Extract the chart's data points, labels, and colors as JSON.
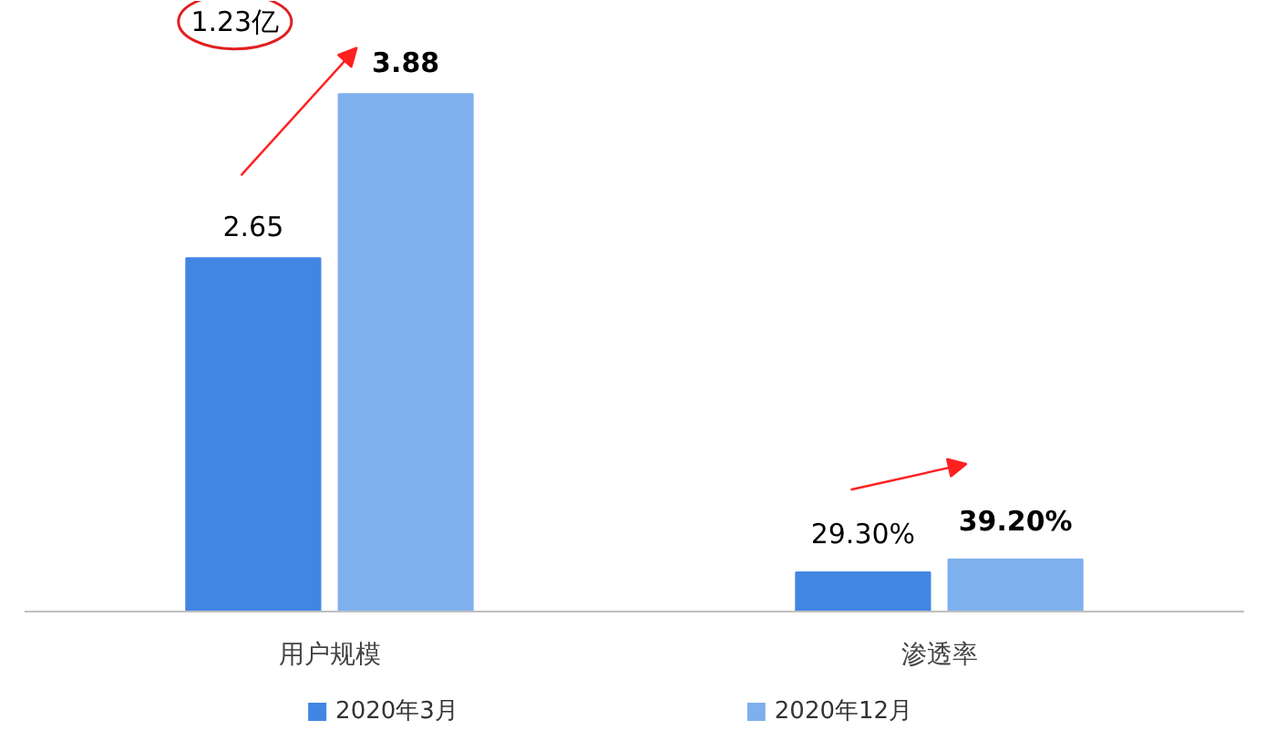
{
  "chart_data": {
    "type": "bar",
    "tick_labels": "x",
    "categories": [
      "用户规模",
      "渗透率"
    ],
    "series": [
      {
        "name": "2020年3月",
        "color": "#4286e4",
        "values": [
          2.65,
          0.293
        ],
        "value_labels": [
          "2.65",
          "29.30%"
        ]
      },
      {
        "name": "2020年12月",
        "color": "#7fb0ee",
        "values": [
          3.88,
          0.392
        ],
        "value_labels": [
          "3.88",
          "39.20%"
        ]
      }
    ],
    "annotations": [
      "1.23亿"
    ],
    "legend": "bottom"
  }
}
